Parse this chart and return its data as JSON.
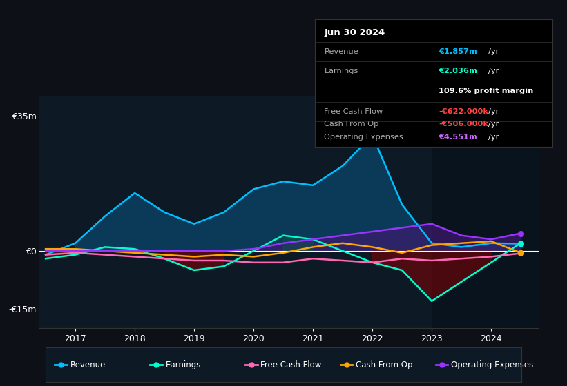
{
  "background_color": "#0d1117",
  "plot_bg_color": "#0d1a26",
  "grid_color": "#1e3a4a",
  "zero_line_color": "#ffffff",
  "years": [
    2016.5,
    2017,
    2017.5,
    2018,
    2018.5,
    2019,
    2019.5,
    2020,
    2020.5,
    2021,
    2021.5,
    2022,
    2022.5,
    2023,
    2023.5,
    2024,
    2024.5
  ],
  "revenue": [
    -1,
    2,
    9,
    15,
    10,
    7,
    10,
    16,
    18,
    17,
    22,
    30,
    12,
    2,
    1,
    2,
    1.857
  ],
  "earnings": [
    -2,
    -1,
    1,
    0.5,
    -2,
    -5,
    -4,
    0,
    4,
    3,
    0,
    -3,
    -5,
    -13,
    -8,
    -3,
    2.036
  ],
  "free_cash_flow": [
    -1,
    -0.5,
    -1,
    -1.5,
    -2,
    -2.5,
    -2.5,
    -3,
    -3,
    -2,
    -2.5,
    -3,
    -2,
    -2.5,
    -2,
    -1.5,
    -0.622
  ],
  "cash_from_op": [
    0.5,
    0.5,
    0,
    -0.5,
    -1,
    -1.5,
    -1,
    -1.5,
    -0.5,
    1,
    2,
    1,
    -0.5,
    1.5,
    2,
    2.5,
    -0.506
  ],
  "operating_expenses": [
    0,
    0,
    0,
    0,
    0,
    0,
    0,
    0.5,
    2,
    3,
    4,
    5,
    6,
    7,
    4,
    3,
    4.551
  ],
  "revenue_color": "#00bfff",
  "earnings_color": "#00ffcc",
  "free_cash_flow_color": "#ff69b4",
  "cash_from_op_color": "#ffa500",
  "operating_expenses_color": "#9933ff",
  "revenue_fill_color": "#0a4060",
  "operating_expenses_fill_color": "#3d1a6e",
  "yticks": [
    -15,
    0,
    35
  ],
  "ylabels": [
    "-€15m",
    "€0",
    "€35m"
  ],
  "xticks": [
    2017,
    2018,
    2019,
    2020,
    2021,
    2022,
    2023,
    2024
  ],
  "ylim": [
    -20,
    40
  ],
  "info_box": {
    "date": "Jun 30 2024",
    "revenue_val": "€1.857m",
    "earnings_val": "€2.036m",
    "profit_margin": "109.6%",
    "fcf_val": "-€622.000k",
    "cfo_val": "-€506.000k",
    "opex_val": "€4.551m",
    "revenue_color": "#00bfff",
    "earnings_color": "#00ffcc",
    "profit_color": "#ffffff",
    "fcf_color": "#ff4444",
    "cfo_color": "#ff4444",
    "opex_color": "#cc66ff",
    "label_color": "#aaaaaa",
    "bg_color": "#000000",
    "border_color": "#333333"
  },
  "legend": {
    "items": [
      "Revenue",
      "Earnings",
      "Free Cash Flow",
      "Cash From Op",
      "Operating Expenses"
    ],
    "colors": [
      "#00bfff",
      "#00ffcc",
      "#ff69b4",
      "#ffa500",
      "#9933ff"
    ],
    "bg_color": "#0d1a26",
    "border_color": "#333333"
  }
}
